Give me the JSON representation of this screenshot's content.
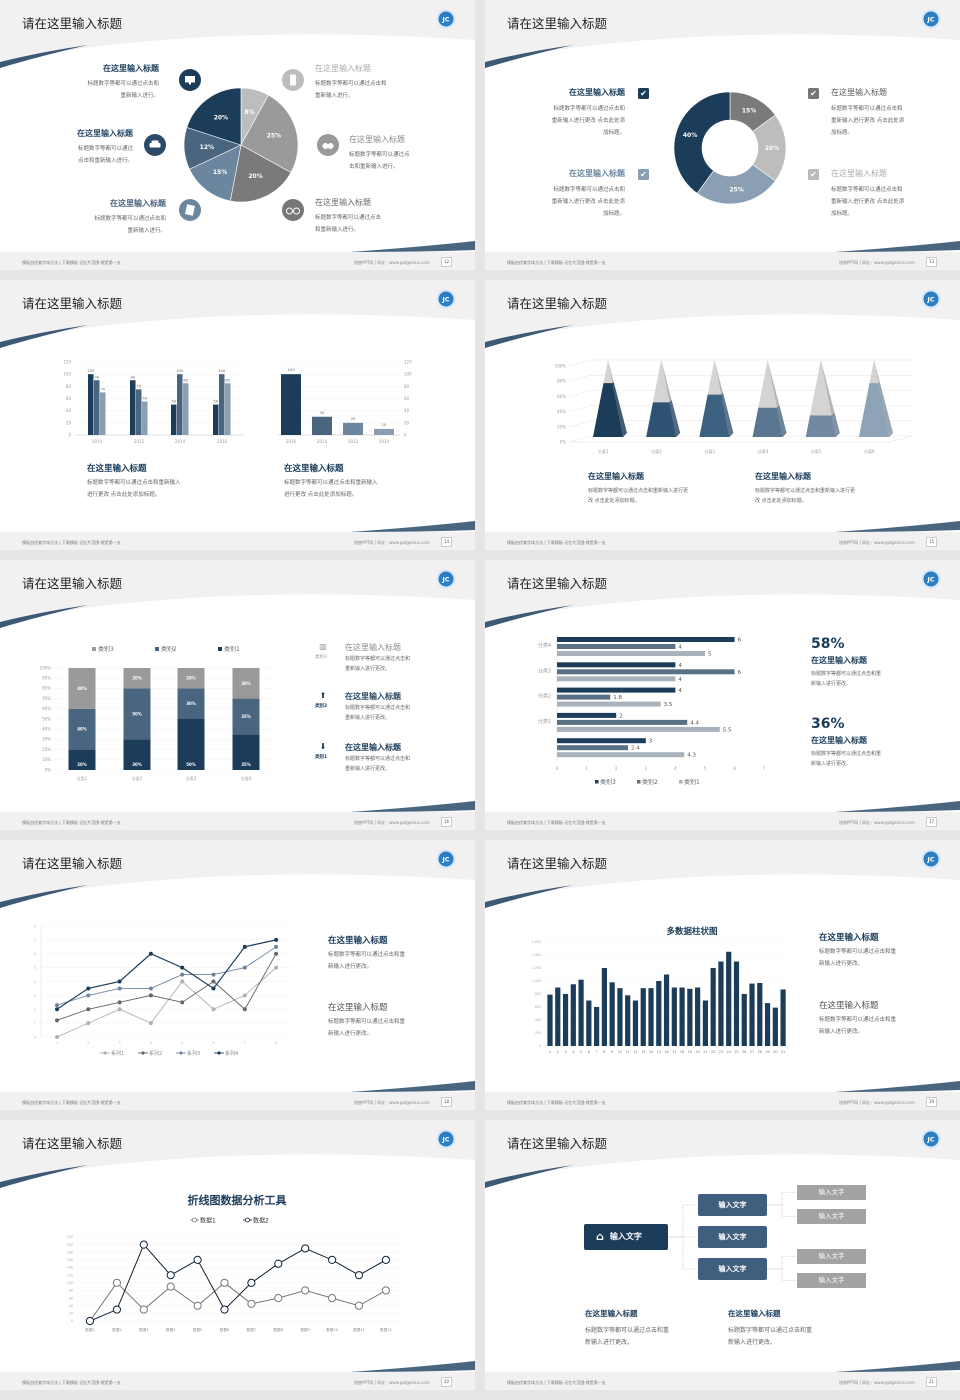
{
  "common": {
    "footer_left": "模板由优美字体方法 | 下载模板-记忆片范围-就是第一支",
    "footer_right": "锐普PPT网 | 网址：www.pptgenius.com",
    "colors": {
      "navy": "#1c3d5a",
      "slate": "#4a6580",
      "steel": "#8a9fb3",
      "gray": "#9a9a9a",
      "light_gray": "#bdbdbd"
    }
  },
  "slides": [
    {
      "page": "12",
      "title": "请在这里输入标题",
      "items": [
        {
          "title": "在这里输入标题",
          "body": [
            "标题数字等都可以通过点击和",
            "重新输入进行。"
          ],
          "icon": "monitor-icon"
        },
        {
          "title": "在这里输入标题",
          "body": [
            "标题数字等都可以通过",
            "点击和重新输入进行。"
          ],
          "icon": "car-icon"
        },
        {
          "title": "在这里输入标题",
          "body": [
            "标题数字等都可以通过点击和",
            "重新输入进行。"
          ],
          "icon": "book-icon"
        },
        {
          "title": "在这里输入标题",
          "body": [
            "标题数字等都可以通过点击和",
            "重新输入进行。"
          ],
          "icon": "phone-icon"
        },
        {
          "title": "在这里输入标题",
          "body": [
            "标题数字等都可以通过点",
            "击和重新输入进行。"
          ],
          "icon": "binoculars-icon"
        },
        {
          "title": "在这里输入标题",
          "body": [
            "标题数字等都可以通过点击",
            "和重新输入进行。"
          ],
          "icon": "bicycle-icon"
        }
      ],
      "chart_data": {
        "type": "pie",
        "slices": [
          {
            "label": "8%",
            "value": 8,
            "color": "#bdbdbd"
          },
          {
            "label": "25%",
            "value": 25,
            "color": "#9a9a9a"
          },
          {
            "label": "20%",
            "value": 20,
            "color": "#7a7a7a"
          },
          {
            "label": "15%",
            "value": 15,
            "color": "#6d86a0"
          },
          {
            "label": "12%",
            "value": 12,
            "color": "#4a6580"
          },
          {
            "label": "20%",
            "value": 20,
            "color": "#1c3d5a"
          }
        ]
      }
    },
    {
      "page": "13",
      "title": "请在这里输入标题",
      "items": [
        {
          "title": "在这里输入标题",
          "body": [
            "标题数字等都可以通过点击和",
            "重新输入进行更改 点击此处添",
            "加标题。"
          ],
          "checked": true
        },
        {
          "title": "在这里输入标题",
          "body": [
            "标题数字等都可以通过点击和",
            "重新输入进行更改 点击此处添",
            "加标题。"
          ],
          "checked": true
        },
        {
          "title": "在这里输入标题",
          "body": [
            "标题数字等都可以通过点击和",
            "重新输入进行更改 点击此处添",
            "加标题。"
          ],
          "checked": true
        },
        {
          "title": "在这里输入标题",
          "body": [
            "标题数字等都可以通过点击和",
            "重新输入进行更改 点击此处添",
            "加标题。"
          ],
          "checked": true
        }
      ],
      "chart_data": {
        "type": "pie",
        "donut": true,
        "slices": [
          {
            "label": "15%",
            "value": 15,
            "color": "#7a7a7a"
          },
          {
            "label": "20%",
            "value": 20,
            "color": "#bdbdbd"
          },
          {
            "label": "25%",
            "value": 25,
            "color": "#8a9fb3"
          },
          {
            "label": "40%",
            "value": 40,
            "color": "#1c3d5a"
          }
        ]
      }
    },
    {
      "page": "14",
      "title": "请在这里输入标题",
      "items": [
        {
          "title": "在这里输入标题",
          "body": [
            "标题数字等都可以通过点击和重新输入",
            "进行更改 点击此处添加标题。"
          ]
        },
        {
          "title": "在这里输入标题",
          "body": [
            "标题数字等都可以通过点击和重新输入",
            "进行更改 点击此处添加标题。"
          ]
        }
      ],
      "chart_data": [
        {
          "type": "bar",
          "categories": [
            "2010",
            "2012",
            "2014",
            "2016"
          ],
          "ylim": [
            0,
            120
          ],
          "yticks": [
            "0",
            "20",
            "40",
            "60",
            "80",
            "100",
            "120"
          ],
          "series": [
            {
              "values": [
                100,
                90,
                50,
                50
              ],
              "color": "#1c3d5a"
            },
            {
              "values": [
                90,
                75,
                100,
                100
              ],
              "color": "#4a6580"
            },
            {
              "values": [
                70,
                55,
                85,
                85
              ],
              "color": "#8a9fb3"
            }
          ]
        },
        {
          "type": "bar",
          "categories": [
            "2016",
            "2014",
            "2012",
            "2010"
          ],
          "ylim": [
            0,
            120
          ],
          "yticks": [
            "0",
            "20",
            "40",
            "60",
            "80",
            "100",
            "120"
          ],
          "axis": "right",
          "values": [
            100,
            30,
            20,
            10
          ],
          "colors": [
            "#1c3d5a",
            "#4a6580",
            "#6d86a0",
            "#8a9fb3"
          ]
        }
      ]
    },
    {
      "page": "15",
      "title": "请在这里输入标题",
      "items": [
        {
          "title": "在这里输入标题",
          "body": [
            "标题数字等都可以通过点击和重新输入进行更",
            "改 点击此处添加标题。"
          ]
        },
        {
          "title": "在这里输入标题",
          "body": [
            "标题数字等都可以通过点击和重新输入进行更",
            "改 点击此处添加标题。"
          ]
        }
      ],
      "chart_data": {
        "type": "bar",
        "style": "3d-pyramid",
        "categories": [
          "分类1",
          "分类2",
          "分类3",
          "分类4",
          "分类5",
          "分类6"
        ],
        "values": [
          70,
          45,
          55,
          38,
          28,
          70
        ],
        "ylim": [
          0,
          100
        ],
        "yticks": [
          "0%",
          "20%",
          "40%",
          "60%",
          "80%",
          "100%"
        ],
        "colors": [
          "#1c3d5a",
          "#2e5272",
          "#3d6080",
          "#5a7690",
          "#7088a0",
          "#8ea3b5"
        ]
      }
    },
    {
      "page": "16",
      "title": "请在这里输入标题",
      "items": [
        {
          "title": "在这里输入标题",
          "body": [
            "标题数字等都可以通过点击和",
            "重新输入进行更改。"
          ],
          "icon_label": "类别3",
          "icon": "bar-chart-icon"
        },
        {
          "title": "在这里输入标题",
          "body": [
            "标题数字等都可以通过点击和",
            "重新输入进行更改。"
          ],
          "icon_label": "类别2",
          "icon": "upload-icon"
        },
        {
          "title": "在这里输入标题",
          "body": [
            "标题数字等都可以通过点击和",
            "重新输入进行更改。"
          ],
          "icon_label": "类别1",
          "icon": "download-icon"
        }
      ],
      "chart_data": {
        "type": "bar",
        "stacked": true,
        "categories": [
          "分类1",
          "分类2",
          "分类3",
          "分类4"
        ],
        "ylim": [
          0,
          100
        ],
        "yticks": [
          "0%",
          "10%",
          "20%",
          "30%",
          "40%",
          "50%",
          "60%",
          "70%",
          "80%",
          "90%",
          "100%"
        ],
        "legend": "top",
        "series": [
          {
            "name": "类别1",
            "values": [
              20,
              30,
              50,
              35
            ],
            "color": "#1c3d5a"
          },
          {
            "name": "类别2",
            "values": [
              40,
              50,
              30,
              35
            ],
            "color": "#4a6580"
          },
          {
            "name": "类别3",
            "values": [
              40,
              20,
              20,
              30
            ],
            "color": "#9a9a9a"
          }
        ]
      }
    },
    {
      "page": "17",
      "title": "请在这里输入标题",
      "stats": [
        {
          "value": "58%",
          "title": "在这里输入标题",
          "body": [
            "标题数字等都可以通过点击和重",
            "新输入进行更改。"
          ]
        },
        {
          "value": "36%",
          "title": "在这里输入标题",
          "body": [
            "标题数字等都可以通过点击和重",
            "新输入进行更改。"
          ]
        }
      ],
      "chart_data": {
        "type": "bar",
        "orientation": "horizontal",
        "categories": [
          "分类4",
          "分类3",
          "分类2",
          "分类1",
          ""
        ],
        "xlim": [
          0,
          7
        ],
        "xticks": [
          "0",
          "1",
          "2",
          "3",
          "4",
          "5",
          "6",
          "7"
        ],
        "legend": "bottom",
        "series": [
          {
            "name": "类别3",
            "values": [
              6,
              4,
              4,
              2,
              3
            ],
            "color": "#1c3d5a"
          },
          {
            "name": "类别2",
            "values": [
              4,
              6,
              1.8,
              4.4,
              2.4
            ],
            "color": "#5a7085"
          },
          {
            "name": "类别1",
            "values": [
              5,
              4,
              3.5,
              5.5,
              4.3
            ],
            "color": "#a8b2bc"
          }
        ]
      }
    },
    {
      "page": "18",
      "title": "请在这里输入标题",
      "items": [
        {
          "title": "在这里输入标题",
          "body": [
            "标题数字等都可以通过点击和重",
            "新输入进行更改。"
          ]
        },
        {
          "title": "在这里输入标题",
          "body": [
            "标题数字等都可以通过点击和重",
            "新输入进行更改。"
          ]
        }
      ],
      "chart_data": {
        "type": "line",
        "x": [
          "1",
          "2",
          "3",
          "4",
          "5",
          "6",
          "7",
          "8"
        ],
        "ylim": [
          0,
          8
        ],
        "yticks": [
          "0",
          "1",
          "2",
          "3",
          "4",
          "5",
          "6",
          "7",
          "8"
        ],
        "legend": "bottom",
        "series": [
          {
            "name": "系列1",
            "values": [
              0,
              1,
              2,
              1,
              4,
              2,
              3,
              5
            ],
            "color": "#b0b0b0"
          },
          {
            "name": "系列2",
            "values": [
              1.2,
              2,
              2.5,
              3,
              2.5,
              4,
              2,
              6
            ],
            "color": "#666666"
          },
          {
            "name": "系列3",
            "values": [
              2.3,
              3,
              3.5,
              3.5,
              4.5,
              4.5,
              5,
              6.5
            ],
            "color": "#6d86a0"
          },
          {
            "name": "系列4",
            "values": [
              2,
              3.5,
              4,
              6,
              5,
              3.5,
              6.5,
              7
            ],
            "color": "#1c3d5a"
          }
        ]
      }
    },
    {
      "page": "19",
      "title": "请在这里输入标题",
      "items": [
        {
          "title": "在这里输入标题",
          "body": [
            "标题数字等都可以通过点击和重",
            "新输入进行更改。"
          ]
        },
        {
          "title": "在这里输入标题",
          "body": [
            "标题数字等都可以通过点击和重",
            "新输入进行更改。"
          ]
        }
      ],
      "chart_data": {
        "type": "bar",
        "title": "多数据柱状图",
        "ylim": [
          0,
          1600
        ],
        "yticks": [
          "0",
          "200",
          "400",
          "600",
          "800",
          "1,000",
          "1,200",
          "1,400",
          "1,600"
        ],
        "categories": [
          "1",
          "2",
          "3",
          "4",
          "5",
          "6",
          "7",
          "8",
          "9",
          "10",
          "11",
          "12",
          "13",
          "14",
          "15",
          "16",
          "17",
          "18",
          "19",
          "20",
          "21",
          "22",
          "23",
          "24",
          "25",
          "26",
          "27",
          "28",
          "29",
          "30",
          "31"
        ],
        "values": [
          790,
          900,
          800,
          950,
          1020,
          700,
          600,
          1200,
          980,
          890,
          780,
          700,
          890,
          890,
          1000,
          1100,
          900,
          900,
          880,
          900,
          700,
          1200,
          1300,
          1450,
          1300,
          800,
          960,
          970,
          660,
          590,
          870
        ],
        "color": "#1c3d5a"
      }
    },
    {
      "page": "20",
      "title": "请在这里输入标题",
      "chart_data": {
        "type": "line",
        "title": "折线图数据分析工具",
        "legend": "top",
        "x": [
          "数据1",
          "数据2",
          "数据3",
          "数据4",
          "数据5",
          "数据6",
          "数据7",
          "数据8",
          "数据9",
          "数据10",
          "数据11",
          "数据12"
        ],
        "ylim": [
          0,
          220
        ],
        "yticks": [
          "0",
          "20",
          "40",
          "60",
          "80",
          "100",
          "120",
          "140",
          "160",
          "180",
          "200",
          "220"
        ],
        "series": [
          {
            "name": "数据1",
            "values": [
              0,
              100,
              30,
              90,
              40,
              100,
              45,
              60,
              80,
              60,
              40,
              80
            ],
            "color": "#777777"
          },
          {
            "name": "数据2",
            "values": [
              0,
              30,
              200,
              120,
              160,
              30,
              100,
              150,
              190,
              160,
              120,
              160
            ],
            "color": "#0f2238"
          }
        ]
      }
    },
    {
      "page": "21",
      "title": "请在这里输入标题",
      "org": {
        "root": {
          "label": "输入文字",
          "icon": "home-icon"
        },
        "children": [
          {
            "label": "输入文字",
            "children": [
              "输入文字",
              "输入文字"
            ]
          },
          {
            "label": "输入文字",
            "children": []
          },
          {
            "label": "输入文字",
            "children": [
              "输入文字",
              "输入文字"
            ]
          }
        ]
      },
      "items": [
        {
          "title": "在这里输入标题",
          "body": [
            "标题数字等都可以通过点击和重",
            "新输入进行更改。"
          ]
        },
        {
          "title": "在这里输入标题",
          "body": [
            "标题数字等都可以通过点击和重",
            "新输入进行更改。"
          ]
        }
      ]
    }
  ]
}
